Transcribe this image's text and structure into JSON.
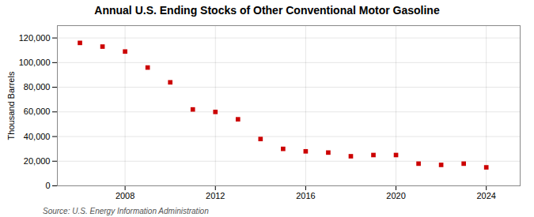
{
  "chart_data": {
    "type": "scatter",
    "title": "Annual U.S. Ending Stocks of Other Conventional Motor Gasoline",
    "ylabel": "Thousand Barrels",
    "source": "Source: U.S. Energy Information Administration",
    "x": [
      2006,
      2007,
      2008,
      2009,
      2010,
      2011,
      2012,
      2013,
      2014,
      2015,
      2016,
      2017,
      2018,
      2019,
      2020,
      2021,
      2022,
      2023,
      2024
    ],
    "values": [
      116000,
      113000,
      109000,
      96000,
      84000,
      62000,
      60000,
      54000,
      38000,
      30000,
      28000,
      27000,
      24000,
      25000,
      25000,
      18000,
      17000,
      18000,
      15000
    ],
    "color": "#cc0000",
    "marker": "square",
    "xlim": [
      2005,
      2025.5
    ],
    "xticks": [
      2008,
      2012,
      2016,
      2020,
      2024
    ],
    "ylim": [
      0,
      130000
    ],
    "yticks": [
      0,
      {
        "value": 20000,
        "label": "20,000"
      },
      {
        "value": 40000,
        "label": "40,000"
      },
      {
        "value": 60000,
        "label": "60,000"
      },
      {
        "value": 80000,
        "label": "80,000"
      },
      {
        "value": 100000,
        "label": "100,000"
      },
      {
        "value": 120000,
        "label": "120,000"
      }
    ],
    "grid": true
  }
}
